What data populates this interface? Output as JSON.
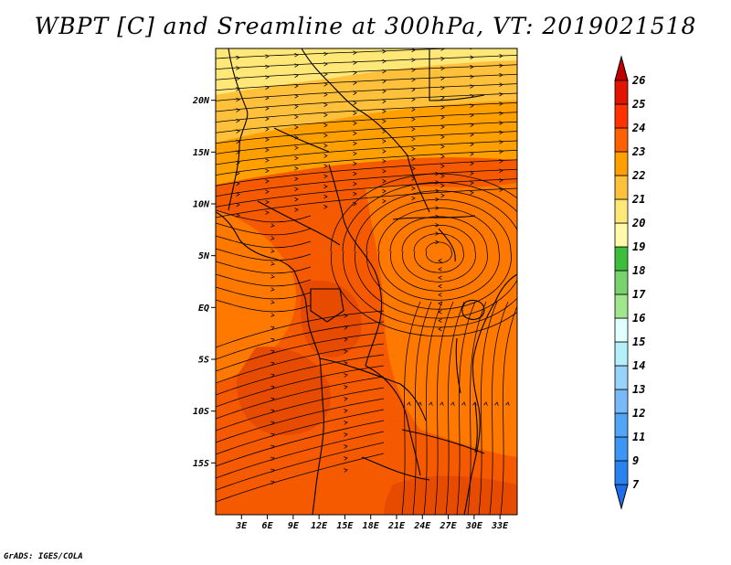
{
  "title": "WBPT [C] and Sreamline at 300hPa, VT: 2019021518",
  "credit": "GrADS: IGES/COLA",
  "map": {
    "lon_range": [
      0,
      35
    ],
    "lat_range": [
      -20,
      25
    ],
    "lat_ticks": [
      {
        "value": 20,
        "label": "20N"
      },
      {
        "value": 15,
        "label": "15N"
      },
      {
        "value": 10,
        "label": "10N"
      },
      {
        "value": 5,
        "label": "5N"
      },
      {
        "value": 0,
        "label": "EQ"
      },
      {
        "value": -5,
        "label": "5S"
      },
      {
        "value": -10,
        "label": "10S"
      },
      {
        "value": -15,
        "label": "15S"
      }
    ],
    "lon_ticks": [
      {
        "value": 3,
        "label": "3E"
      },
      {
        "value": 6,
        "label": "6E"
      },
      {
        "value": 9,
        "label": "9E"
      },
      {
        "value": 12,
        "label": "12E"
      },
      {
        "value": 15,
        "label": "15E"
      },
      {
        "value": 18,
        "label": "18E"
      },
      {
        "value": 21,
        "label": "21E"
      },
      {
        "value": 24,
        "label": "24E"
      },
      {
        "value": 27,
        "label": "27E"
      },
      {
        "value": 30,
        "label": "30E"
      },
      {
        "value": 33,
        "label": "33E"
      }
    ]
  },
  "colorbar": {
    "levels": [
      "7",
      "9",
      "11",
      "12",
      "13",
      "14",
      "15",
      "16",
      "17",
      "18",
      "19",
      "20",
      "21",
      "22",
      "23",
      "24",
      "25",
      "26"
    ],
    "colors": [
      "#1e6eeb",
      "#2882f0",
      "#3c96f5",
      "#50a5f5",
      "#78b9fa",
      "#96d2fa",
      "#b4f0fa",
      "#e1ffff",
      "#a0e68c",
      "#78d26e",
      "#3cbe3c",
      "#fffaaa",
      "#ffe878",
      "#ffc03c",
      "#ffa000",
      "#ff6000",
      "#ff3200",
      "#e11400",
      "#c00000"
    ]
  },
  "field_colors": {
    "c19": "#ffe878",
    "c20": "#ffc03c",
    "c21": "#ffa000",
    "c22": "#ff7800",
    "c23": "#f55a00",
    "c24": "#e64b00"
  },
  "line_color": "#000000"
}
